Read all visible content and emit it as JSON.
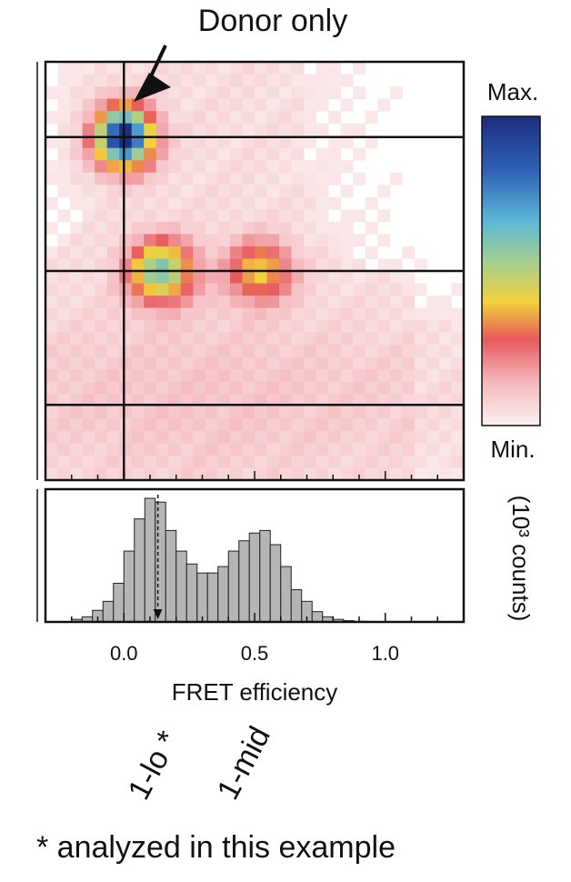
{
  "annotation": {
    "label": "Donor only"
  },
  "colorbar": {
    "max_label": "Max.",
    "min_label": "Min.",
    "colors": [
      "#fbf0f1",
      "#f4b8bd",
      "#e8595b",
      "#f2d23b",
      "#a9d08a",
      "#5cb8d8",
      "#2f63b6",
      "#1d2c80"
    ]
  },
  "histogram_unit_label": "(10³ counts)",
  "species_labels": [
    "1-lo *",
    "1-mid"
  ],
  "footnote": "* analyzed in this example",
  "chart_data": [
    {
      "type": "heatmap",
      "xlabel": "",
      "ylabel": "",
      "xlim": [
        -0.3,
        1.3
      ],
      "ylim": [
        0,
        1
      ],
      "x_ticks": [
        0.0,
        0.5,
        1.0
      ],
      "horizontal_guides_y": [
        0.82,
        0.5,
        0.18
      ],
      "vertical_guide_x": 0.0,
      "populations": [
        {
          "x": 0.0,
          "y": 0.82,
          "intensity": 1.0
        },
        {
          "x": 0.14,
          "y": 0.5,
          "intensity": 0.6
        },
        {
          "x": 0.52,
          "y": 0.5,
          "intensity": 0.38
        }
      ]
    },
    {
      "type": "bar",
      "xlabel": "FRET efficiency",
      "ylabel": "(10³ counts)",
      "xlim": [
        -0.3,
        1.3
      ],
      "x_ticks": [
        0.0,
        0.5,
        1.0
      ],
      "x_tick_labels": [
        "0.0",
        "0.5",
        "1.0"
      ],
      "bin_width": 0.04,
      "dashed_marker_x": 0.13,
      "bins": [
        -0.18,
        -0.14,
        -0.1,
        -0.06,
        -0.02,
        0.02,
        0.06,
        0.1,
        0.14,
        0.18,
        0.22,
        0.26,
        0.3,
        0.34,
        0.38,
        0.42,
        0.46,
        0.5,
        0.54,
        0.58,
        0.62,
        0.66,
        0.7,
        0.74,
        0.78,
        0.82,
        0.86,
        0.9
      ],
      "values": [
        0.02,
        0.04,
        0.09,
        0.16,
        0.3,
        0.55,
        0.8,
        0.96,
        0.93,
        0.71,
        0.55,
        0.45,
        0.38,
        0.38,
        0.43,
        0.55,
        0.63,
        0.69,
        0.71,
        0.6,
        0.43,
        0.25,
        0.16,
        0.08,
        0.04,
        0.02,
        0.01,
        0.005
      ]
    }
  ]
}
